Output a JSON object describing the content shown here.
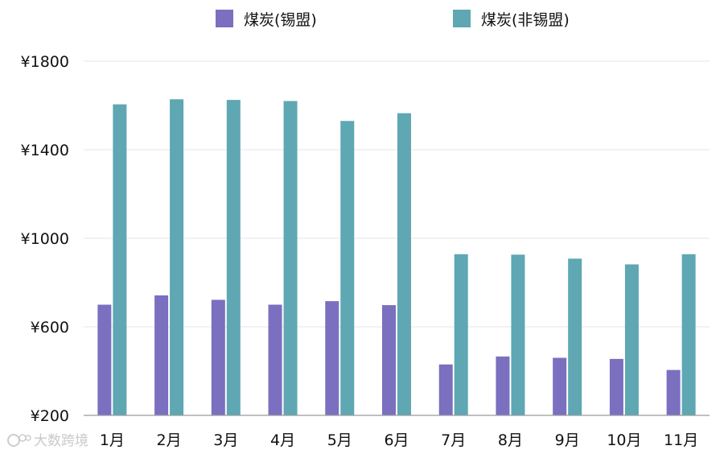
{
  "chart_data": {
    "type": "bar",
    "categories": [
      "1月",
      "2月",
      "3月",
      "4月",
      "5月",
      "6月",
      "7月",
      "8月",
      "9月",
      "10月",
      "11月"
    ],
    "series": [
      {
        "name": "煤炭(锡盟)",
        "color": "#7b6fbf",
        "values": [
          700,
          742,
          722,
          700,
          716,
          698,
          430,
          466,
          460,
          455,
          405
        ]
      },
      {
        "name": "煤炭(非锡盟)",
        "color": "#5ea7b3",
        "values": [
          1605,
          1628,
          1625,
          1620,
          1530,
          1565,
          928,
          926,
          908,
          882,
          928
        ]
      }
    ],
    "y_ticks": [
      "¥200",
      "¥600",
      "¥1000",
      "¥1400",
      "¥1800"
    ],
    "y_tick_values": [
      200,
      600,
      1000,
      1400,
      1800
    ],
    "ylim": [
      200,
      1800
    ],
    "grid": true,
    "legend_position": "top"
  },
  "watermark": {
    "text": "大数跨境"
  }
}
